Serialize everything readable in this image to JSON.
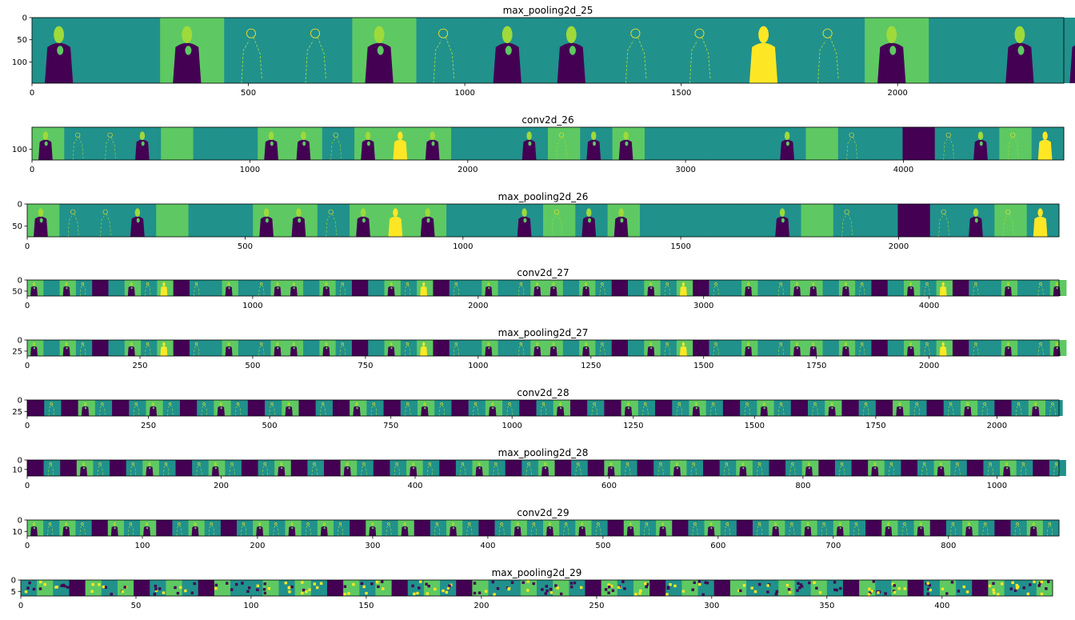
{
  "figure": {
    "background": "#ffffff"
  },
  "palette": {
    "dark": "#440154",
    "blue": "#3b528b",
    "mid": "#21918c",
    "teal": "#2a9c8a",
    "green": "#5ec962",
    "light": "#9fda3a",
    "yellow": "#fde725"
  },
  "chart_data": [
    {
      "type": "heatmap",
      "title": "max_pooling2d_25",
      "xlim": [
        0,
        2384
      ],
      "ylim": [
        148,
        0
      ],
      "xticks": [
        0,
        500,
        1000,
        1500,
        2000
      ],
      "yticks": [
        0,
        50,
        100
      ],
      "panel_width": 148,
      "panels": [
        "mid",
        "mid",
        "green",
        "mid",
        "mid",
        "green",
        "mid",
        "mid",
        "mid",
        "mid",
        "mid",
        "mid",
        "mid",
        "green",
        "mid",
        "mid"
      ],
      "figures": [
        "photo",
        "none",
        "photo",
        "edge",
        "edge",
        "photo",
        "edge",
        "photo",
        "photo",
        "edge",
        "edge",
        "bright",
        "edge",
        "photo",
        "none",
        "photo"
      ]
    },
    {
      "type": "heatmap",
      "title": "conv2d_26",
      "xlim": [
        0,
        4736
      ],
      "ylim": [
        148,
        0
      ],
      "xticks": [
        0,
        1000,
        2000,
        3000,
        4000
      ],
      "yticks": [
        100
      ],
      "panel_width": 148,
      "panels": [
        "green",
        "mid",
        "mid",
        "mid",
        "green",
        "mid",
        "mid",
        "green",
        "green",
        "mid",
        "green",
        "green",
        "green",
        "mid",
        "mid",
        "mid",
        "green",
        "mid",
        "green",
        "mid",
        "mid",
        "mid",
        "mid",
        "mid",
        "green",
        "mid",
        "mid",
        "dark",
        "mid",
        "mid",
        "green",
        "mid"
      ],
      "figures": [
        "photo",
        "edge",
        "edge",
        "photo",
        "none",
        "none",
        "none",
        "photo",
        "photo",
        "edge",
        "photo",
        "bright",
        "photo",
        "none",
        "none",
        "photo",
        "edge",
        "photo",
        "photo",
        "none",
        "none",
        "none",
        "none",
        "photo",
        "none",
        "edge",
        "none",
        "none",
        "edge",
        "photo",
        "edge",
        "bright"
      ]
    },
    {
      "type": "heatmap",
      "title": "max_pooling2d_26",
      "xlim": [
        0,
        2368
      ],
      "ylim": [
        74,
        0
      ],
      "xticks": [
        0,
        500,
        1000,
        1500,
        2000
      ],
      "yticks": [
        0,
        50
      ],
      "panel_width": 74,
      "panels": [
        "green",
        "mid",
        "mid",
        "mid",
        "green",
        "mid",
        "mid",
        "green",
        "green",
        "mid",
        "green",
        "green",
        "green",
        "mid",
        "mid",
        "mid",
        "green",
        "mid",
        "green",
        "mid",
        "mid",
        "mid",
        "mid",
        "mid",
        "green",
        "mid",
        "mid",
        "dark",
        "mid",
        "mid",
        "green",
        "mid"
      ],
      "figures": [
        "photo",
        "edge",
        "edge",
        "photo",
        "none",
        "none",
        "none",
        "photo",
        "photo",
        "edge",
        "photo",
        "bright",
        "photo",
        "none",
        "none",
        "photo",
        "edge",
        "photo",
        "photo",
        "none",
        "none",
        "none",
        "none",
        "photo",
        "none",
        "edge",
        "none",
        "none",
        "edge",
        "photo",
        "edge",
        "bright"
      ]
    },
    {
      "type": "heatmap",
      "title": "conv2d_27",
      "xlim": [
        0,
        4576
      ],
      "ylim": [
        72,
        0
      ],
      "xticks": [
        0,
        1000,
        2000,
        3000,
        4000
      ],
      "yticks": [
        0,
        50
      ],
      "panel_width": 72,
      "repeat": 4,
      "panels": [
        "green",
        "mid",
        "green",
        "mid",
        "dark",
        "mid",
        "green",
        "mid",
        "green",
        "dark",
        "mid",
        "mid",
        "green",
        "mid",
        "mid",
        "green"
      ],
      "figures": [
        "photo",
        "none",
        "photo",
        "edge",
        "none",
        "none",
        "photo",
        "edge",
        "bright",
        "none",
        "edge",
        "none",
        "photo",
        "none",
        "edge",
        "photo"
      ]
    },
    {
      "type": "heatmap",
      "title": "max_pooling2d_27",
      "xlim": [
        0,
        2288
      ],
      "ylim": [
        36,
        0
      ],
      "xticks": [
        0,
        250,
        500,
        750,
        1000,
        1250,
        1500,
        1750,
        2000
      ],
      "yticks": [
        0,
        25
      ],
      "panel_width": 36,
      "repeat": 4,
      "panels": [
        "green",
        "mid",
        "green",
        "mid",
        "dark",
        "mid",
        "green",
        "mid",
        "green",
        "dark",
        "mid",
        "mid",
        "green",
        "mid",
        "mid",
        "green"
      ],
      "figures": [
        "photo",
        "none",
        "photo",
        "edge",
        "none",
        "none",
        "photo",
        "edge",
        "bright",
        "none",
        "edge",
        "none",
        "photo",
        "none",
        "edge",
        "photo"
      ]
    },
    {
      "type": "heatmap",
      "title": "conv2d_28",
      "xlim": [
        0,
        2128
      ],
      "ylim": [
        35,
        0
      ],
      "xticks": [
        0,
        250,
        500,
        750,
        1000,
        1250,
        1500,
        1750,
        2000
      ],
      "yticks": [
        0,
        25
      ],
      "panel_width": 35,
      "repeat": 4,
      "panels": [
        "dark",
        "mid",
        "dark",
        "green",
        "mid",
        "dark",
        "mid",
        "green",
        "mid",
        "dark",
        "mid",
        "green",
        "mid",
        "dark",
        "mid",
        "green"
      ],
      "figures": [
        "none",
        "edge",
        "none",
        "photo",
        "edge",
        "none",
        "edge",
        "photo",
        "edge",
        "none",
        "edge",
        "photo",
        "edge",
        "none",
        "edge",
        "photo"
      ]
    },
    {
      "type": "heatmap",
      "title": "max_pooling2d_28",
      "xlim": [
        0,
        1064
      ],
      "ylim": [
        17,
        0
      ],
      "xticks": [
        0,
        200,
        400,
        600,
        800,
        1000
      ],
      "yticks": [
        0,
        10
      ],
      "panel_width": 17,
      "repeat": 4,
      "panels": [
        "dark",
        "mid",
        "dark",
        "green",
        "mid",
        "dark",
        "mid",
        "green",
        "mid",
        "dark",
        "mid",
        "green",
        "mid",
        "dark",
        "mid",
        "green"
      ],
      "figures": [
        "none",
        "edge",
        "none",
        "photo",
        "edge",
        "none",
        "edge",
        "photo",
        "edge",
        "none",
        "edge",
        "photo",
        "edge",
        "none",
        "edge",
        "photo"
      ]
    },
    {
      "type": "heatmap",
      "title": "conv2d_29",
      "xlim": [
        0,
        896
      ],
      "ylim": [
        14,
        0
      ],
      "xticks": [
        0,
        100,
        200,
        300,
        400,
        500,
        600,
        700,
        800
      ],
      "yticks": [
        0,
        10
      ],
      "panel_width": 14,
      "repeat": 4,
      "panels": [
        "green",
        "mid",
        "green",
        "mid",
        "dark",
        "green",
        "mid",
        "green",
        "dark",
        "mid",
        "green",
        "mid",
        "dark",
        "mid",
        "green",
        "mid"
      ],
      "figures": [
        "photo",
        "edge",
        "photo",
        "edge",
        "none",
        "photo",
        "edge",
        "photo",
        "none",
        "edge",
        "photo",
        "edge",
        "none",
        "edge",
        "photo",
        "edge"
      ]
    },
    {
      "type": "heatmap",
      "title": "max_pooling2d_29",
      "xlim": [
        0,
        448
      ],
      "ylim": [
        7,
        0
      ],
      "xticks": [
        0,
        50,
        100,
        150,
        200,
        250,
        300,
        350,
        400
      ],
      "yticks": [
        0,
        5
      ],
      "panel_width": 7,
      "repeat": 4,
      "panels": [
        "mid",
        "green",
        "mid",
        "dark",
        "green",
        "mid",
        "green",
        "dark",
        "mid",
        "green",
        "mid",
        "dark",
        "green",
        "mid",
        "mid",
        "green"
      ],
      "figures": [
        "dots",
        "dots",
        "dots",
        "none",
        "dots",
        "dots",
        "dots",
        "none",
        "dots",
        "dots",
        "dots",
        "none",
        "dots",
        "dots",
        "dots",
        "dots"
      ]
    }
  ]
}
